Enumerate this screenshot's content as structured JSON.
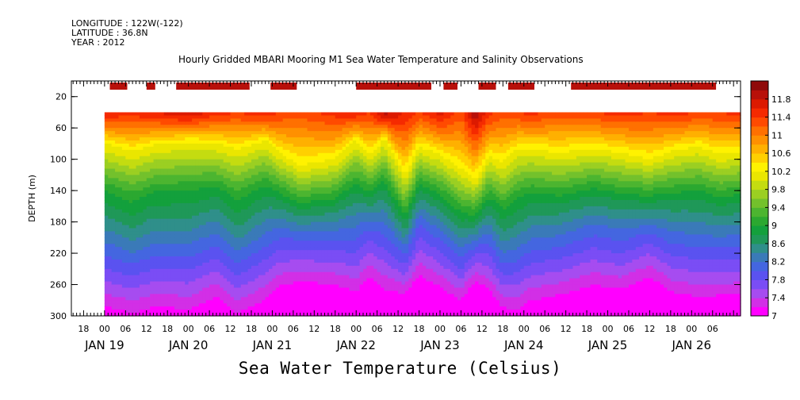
{
  "header": {
    "longitude": "LONGITUDE : 122W(-122)",
    "latitude": "LATITUDE : 36.8N",
    "year": "YEAR : 2012",
    "title": "Hourly Gridded MBARI Mooring M1 Sea Water Temperature and Salinity Observations"
  },
  "footer": {
    "variable_label": "Sea Water Temperature (Celsius)"
  },
  "chart_data": {
    "type": "heatmap",
    "title": "Hourly Gridded MBARI Mooring M1 Sea Water Temperature and Salinity Observations",
    "ylabel": "DEPTH (m)",
    "xlabel": "",
    "ylim": [
      300,
      0
    ],
    "y_ticks": [
      "20",
      "60",
      "100",
      "140",
      "180",
      "220",
      "260",
      "300"
    ],
    "y_tick_values": [
      20,
      60,
      100,
      140,
      180,
      220,
      260,
      300
    ],
    "x_hour_labels": [
      "18",
      "00",
      "06",
      "12",
      "18",
      "00",
      "06",
      "12",
      "18",
      "00",
      "06",
      "12",
      "18",
      "00",
      "06",
      "12",
      "18",
      "00",
      "06",
      "12",
      "18",
      "00",
      "06",
      "12",
      "18",
      "00",
      "06",
      "12",
      "18",
      "00",
      "06"
    ],
    "x_hour_start": "JAN 18 18:00",
    "x_day_labels": [
      "JAN 19",
      "JAN 20",
      "JAN 21",
      "JAN 22",
      "JAN 23",
      "JAN 24",
      "JAN 25",
      "JAN 26"
    ],
    "x_day_hours": [
      0,
      24,
      48,
      72,
      96,
      120,
      144,
      168
    ],
    "x_range_hours": [
      -9.5,
      182
    ],
    "data_start_hour": 0,
    "data_top_depth": 40,
    "colorbar": {
      "labels": [
        "11.8",
        "11.4",
        "11",
        "10.6",
        "10.2",
        "9.8",
        "9.4",
        "9",
        "8.6",
        "8.2",
        "7.8",
        "7.4",
        "7"
      ],
      "values": [
        11.8,
        11.4,
        11.0,
        10.6,
        10.2,
        9.8,
        9.4,
        9.0,
        8.6,
        8.2,
        7.8,
        7.4,
        7.0
      ],
      "colors": [
        "#ff00ff",
        "#d22fe6",
        "#a64cf0",
        "#7a4df5",
        "#5a52f0",
        "#4466e0",
        "#3a7ab8",
        "#2f8f8a",
        "#1f9858",
        "#13a03c",
        "#2ba830",
        "#4cb530",
        "#73c12c",
        "#9bcf22",
        "#c4dc10",
        "#eae600",
        "#fff200",
        "#ffd000",
        "#ffb000",
        "#ff9000",
        "#ff7000",
        "#ff4a00",
        "#f52a00",
        "#dc1a00",
        "#b8100a",
        "#8f0a0a"
      ],
      "min": 7.0,
      "step": 0.2
    },
    "surface_segments_hours": [
      [
        1.5,
        6.5
      ],
      [
        12,
        14.5
      ],
      [
        20.5,
        41.5
      ],
      [
        47.5,
        55
      ],
      [
        72,
        93.5
      ],
      [
        97,
        101
      ],
      [
        107,
        112
      ],
      [
        115.5,
        123
      ],
      [
        133.5,
        175
      ]
    ],
    "surface_segment_value": 11.9,
    "profile_hours": [
      0,
      8,
      14,
      24,
      32,
      38,
      46,
      50,
      56,
      66,
      72,
      76,
      80,
      86,
      90,
      96,
      102,
      106,
      110,
      114,
      118,
      122,
      130,
      140,
      148,
      156,
      162,
      170,
      176,
      182
    ],
    "thermocline_depth_m": [
      80,
      90,
      82,
      78,
      80,
      88,
      76,
      92,
      108,
      100,
      76,
      96,
      74,
      120,
      84,
      94,
      112,
      126,
      96,
      104,
      88,
      86,
      92,
      86,
      92,
      100,
      90,
      84,
      94,
      90
    ],
    "deep_shift_c": [
      0.0,
      0.1,
      0.0,
      0.05,
      -0.15,
      0.1,
      -0.1,
      -0.35,
      -0.5,
      -0.4,
      -0.2,
      -0.55,
      -0.25,
      -0.3,
      -0.5,
      -0.35,
      -0.15,
      -0.6,
      -0.3,
      0.0,
      0.05,
      -0.1,
      -0.2,
      -0.35,
      -0.3,
      -0.55,
      -0.25,
      -0.15,
      -0.2,
      -0.2
    ],
    "near_surface_max_c": [
      11.6,
      11.5,
      11.6,
      11.8,
      11.5,
      11.4,
      11.6,
      11.4,
      11.3,
      11.5,
      11.6,
      11.4,
      11.9,
      11.6,
      11.4,
      11.7,
      11.3,
      12.0,
      11.5,
      11.3,
      11.4,
      11.5,
      11.3,
      11.4,
      11.5,
      11.4,
      11.5,
      11.4,
      11.4,
      11.5
    ]
  }
}
